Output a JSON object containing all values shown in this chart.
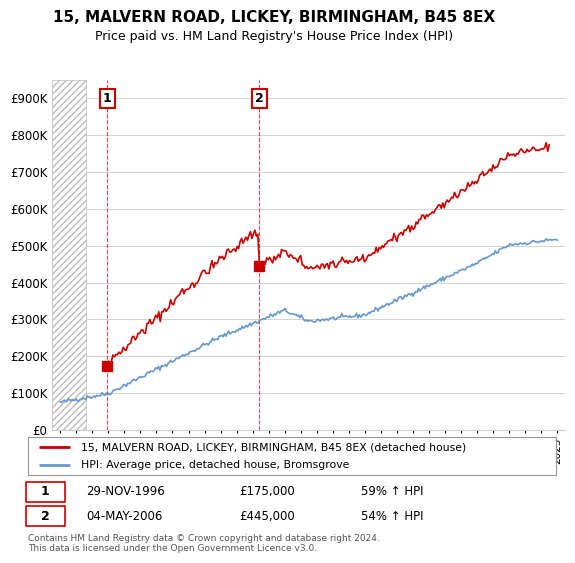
{
  "title": "15, MALVERN ROAD, LICKEY, BIRMINGHAM, B45 8EX",
  "subtitle": "Price paid vs. HM Land Registry's House Price Index (HPI)",
  "legend_line1": "15, MALVERN ROAD, LICKEY, BIRMINGHAM, B45 8EX (detached house)",
  "legend_line2": "HPI: Average price, detached house, Bromsgrove",
  "annotation1_date": "29-NOV-1996",
  "annotation1_price": "£175,000",
  "annotation1_hpi": "59% ↑ HPI",
  "annotation2_date": "04-MAY-2006",
  "annotation2_price": "£445,000",
  "annotation2_hpi": "54% ↑ HPI",
  "footer": "Contains HM Land Registry data © Crown copyright and database right 2024.\nThis data is licensed under the Open Government Licence v3.0.",
  "sale_color": "#cc0000",
  "hpi_color": "#6699cc",
  "ylim": [
    0,
    950000
  ],
  "yticks": [
    0,
    100000,
    200000,
    300000,
    400000,
    500000,
    600000,
    700000,
    800000,
    900000
  ]
}
